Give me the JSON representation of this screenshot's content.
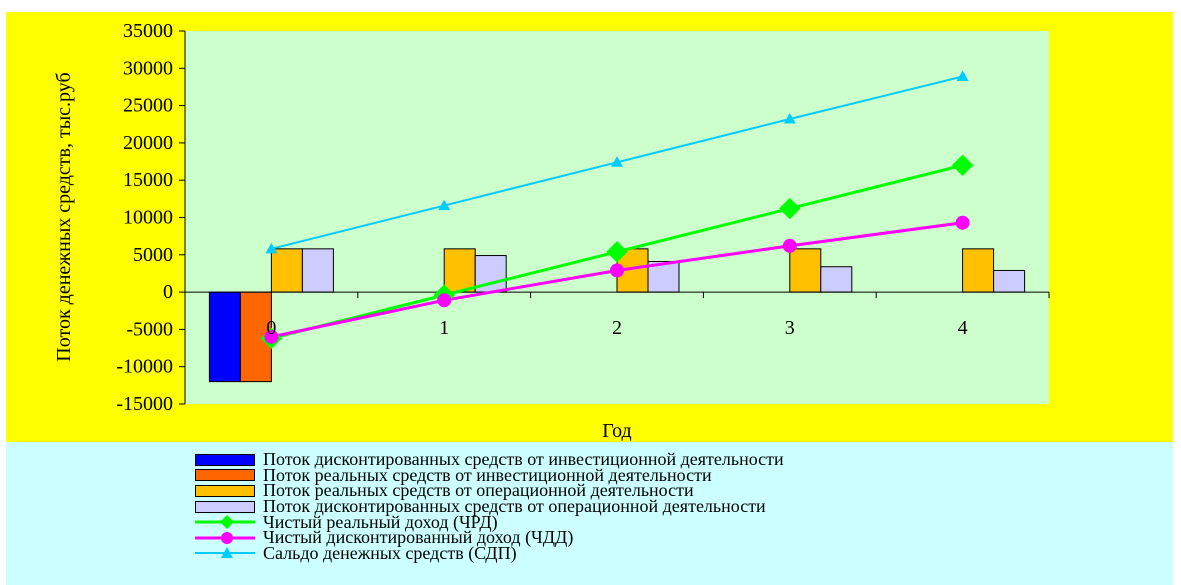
{
  "chart_data": {
    "type": "bar",
    "title": "",
    "xlabel": "Год",
    "ylabel": "Поток денежных средств, тыс.руб",
    "categories": [
      "0",
      "1",
      "2",
      "3",
      "4"
    ],
    "ylim": [
      -15000,
      35000
    ],
    "yticks": [
      -15000,
      -10000,
      -5000,
      0,
      5000,
      10000,
      15000,
      20000,
      25000,
      30000,
      35000
    ],
    "grid": false,
    "legend_position": "bottom",
    "bar_series": [
      {
        "name": "Поток дисконтированных средств от инвестиционной деятельности",
        "color": "#0000ff",
        "values": [
          -12000,
          0,
          0,
          0,
          0
        ]
      },
      {
        "name": "Поток реальных средств от инвестиционной деятельности",
        "color": "#ff6600",
        "values": [
          -12000,
          0,
          0,
          0,
          0
        ]
      },
      {
        "name": "Поток реальных средств от операционной деятельности",
        "color": "#ffc000",
        "values": [
          5800,
          5800,
          5800,
          5800,
          5800
        ]
      },
      {
        "name": "Поток дисконтированных средств от операционной деятельности",
        "color": "#ccccff",
        "values": [
          5800,
          4900,
          4100,
          3400,
          2900
        ]
      }
    ],
    "line_series": [
      {
        "name": "Чистый реальный доход (ЧРД)",
        "color": "#00ff00",
        "marker": "diamond",
        "values": [
          -6200,
          -400,
          5400,
          11200,
          17000
        ]
      },
      {
        "name": "Чистый дисконтированный доход (ЧДД)",
        "color": "#ff00ff",
        "marker": "circle",
        "values": [
          -6000,
          -1100,
          2900,
          6200,
          9300
        ]
      },
      {
        "name": "Сальдо денежных средств (СДП)",
        "color": "#00ccff",
        "marker": "triangle",
        "values": [
          5800,
          11600,
          17400,
          23200,
          28900
        ]
      }
    ]
  },
  "colors": {
    "chart_background": "#ffff00",
    "plot_background": "#ccffcc",
    "legend_background": "#ccffff"
  }
}
